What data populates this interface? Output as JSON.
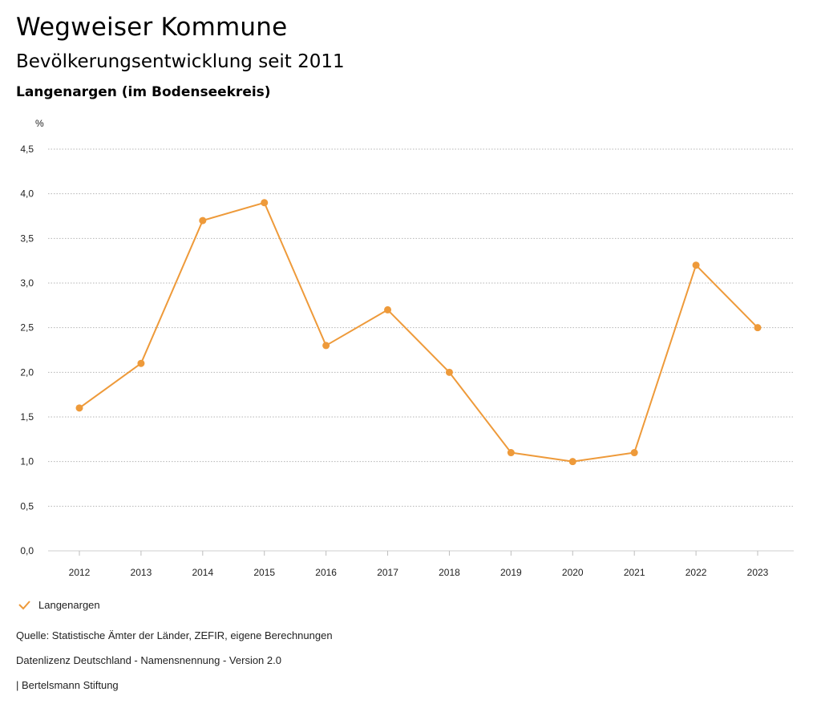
{
  "header": {
    "title": "Wegweiser Kommune",
    "subtitle": "Bevölkerungsentwicklung seit 2011",
    "region": "Langenargen (im Bodenseekreis)"
  },
  "chart_data": {
    "type": "line",
    "ylabel": "%",
    "x": [
      "2012",
      "2013",
      "2014",
      "2015",
      "2016",
      "2017",
      "2018",
      "2019",
      "2020",
      "2021",
      "2022",
      "2023"
    ],
    "series": [
      {
        "name": "Langenargen",
        "color": "#EE9A3A",
        "values": [
          1.6,
          2.1,
          3.7,
          3.9,
          2.3,
          2.7,
          2.0,
          1.1,
          1.0,
          1.1,
          3.2,
          2.5
        ]
      }
    ],
    "ylim": [
      0,
      4.5
    ],
    "yticks": [
      "0,0",
      "0,5",
      "1,0",
      "1,5",
      "2,0",
      "2,5",
      "3,0",
      "3,5",
      "4,0",
      "4,5"
    ],
    "grid": true,
    "legend": "bottom-left"
  },
  "legend": {
    "label": "Langenargen"
  },
  "footer": {
    "source": "Quelle: Statistische Ämter der Länder, ZEFIR, eigene Berechnungen",
    "license": "Datenlizenz Deutschland - Namensnennung - Version 2.0",
    "publisher": "| Bertelsmann Stiftung"
  }
}
